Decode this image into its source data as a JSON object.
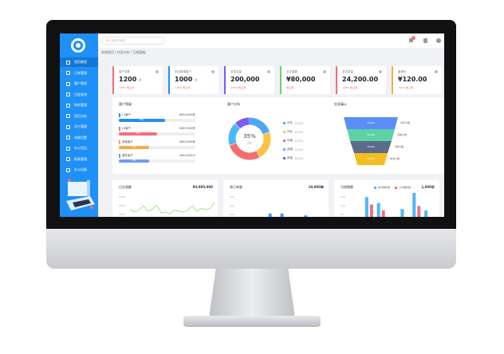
{
  "header": {
    "search_placeholder": "输入搜索关键词",
    "notification_count": "3"
  },
  "breadcrumb": "系统首页 / 信息分析 / 日程展板",
  "sidebar": {
    "items": [
      {
        "label": "首页概览"
      },
      {
        "label": "订单管理"
      },
      {
        "label": "客户管理"
      },
      {
        "label": "日程安排"
      },
      {
        "label": "财务管理"
      },
      {
        "label": "项目分析"
      },
      {
        "label": "员工管理"
      },
      {
        "label": "系统设置"
      },
      {
        "label": "办公用品"
      },
      {
        "label": "报表管理"
      },
      {
        "label": "办公设备"
      }
    ]
  },
  "cards": [
    {
      "title": "客户总数",
      "value": "1200",
      "unit": "个",
      "sub": "↑10% 较上月",
      "color": "#f56c6c"
    },
    {
      "title": "本月新增客户",
      "value": "1000",
      "unit": "个",
      "sub": "↑10% 较上月",
      "color": "#1e90f7"
    },
    {
      "title": "总成交量",
      "value": "200,000",
      "unit": "",
      "sub": "↑10% 较上周",
      "color": "#7b5cf5"
    },
    {
      "title": "总交易额",
      "value": "¥80,000",
      "unit": "",
      "sub": "较上周",
      "color": "#67d36a"
    },
    {
      "title": "总交易量",
      "value": "24,200.00",
      "unit": "",
      "sub": "↓20% 较上周",
      "color": "#f56c6c"
    },
    {
      "title": "客单价",
      "value": "¥120.00",
      "unit": "",
      "sub": "↑10% 较上周",
      "color": "#f7a94c"
    }
  ],
  "progress": {
    "title": "客户等级",
    "items": [
      {
        "label": "L1客户",
        "value": "600/1000件",
        "pct": 60,
        "color": "#1e90f7"
      },
      {
        "label": "L2客户",
        "value": "500/1000件",
        "pct": 50,
        "color": "#f56c7e"
      },
      {
        "label": "其他客户",
        "value": "400/1000件",
        "pct": 40,
        "color": "#f7a94c"
      },
      {
        "label": "潜在客户",
        "value": "400/1000人",
        "pct": 40,
        "color": "#6e9cf5"
      }
    ]
  },
  "donut": {
    "title": "客户分布",
    "center_value": "35%",
    "center_label": "占比",
    "slices": [
      {
        "label": "华东",
        "value": "10000",
        "pct": 20,
        "color": "#4da6f7"
      },
      {
        "label": "华北",
        "value": "10000",
        "pct": 22,
        "color": "#fbc243"
      },
      {
        "label": "华南",
        "value": "10000",
        "pct": 28,
        "color": "#f56c6c"
      },
      {
        "label": "西南",
        "value": "10000",
        "pct": 18,
        "color": "#4db8f7"
      },
      {
        "label": "其他",
        "value": "10000",
        "pct": 12,
        "color": "#7b5cf5"
      }
    ]
  },
  "funnel": {
    "title": "交易漏斗",
    "stages": [
      {
        "value": "20000",
        "label": "访问人数",
        "color": "#5b8ff7"
      },
      {
        "value": "20000",
        "label": "咨询人数",
        "color": "#5bd3a3"
      },
      {
        "value": "20000",
        "label": "下单人数",
        "color": "#5a6b8c"
      },
      {
        "value": "10000",
        "label": "成交人数",
        "color": "#f5bd1f"
      }
    ]
  },
  "bottom": [
    {
      "title": "日交易额",
      "right": "¥3,000,000",
      "yticks": [
        "5000",
        "4000",
        "3000"
      ]
    },
    {
      "title": "周订单量",
      "right": "10,000单",
      "yticks": [
        "900",
        "600",
        "300"
      ]
    },
    {
      "title": "月销售额",
      "right": "1,000余",
      "legend": [
        "本月销售额",
        "上月销售额"
      ],
      "yticks": [
        "150",
        "100",
        "50"
      ]
    }
  ],
  "chart_data": [
    {
      "type": "line",
      "title": "日交易额",
      "values": [
        3400,
        3100,
        3300,
        3800,
        3200,
        3400,
        3900,
        3000,
        3100,
        2900,
        3300,
        3200,
        3100,
        3300,
        3800,
        3200,
        3500,
        3400,
        3500,
        4200
      ],
      "color": "#95de64"
    },
    {
      "type": "bar",
      "title": "周订单量",
      "values": [
        210,
        390,
        570,
        570,
        340,
        530,
        350
      ],
      "color": "#3c9cff"
    },
    {
      "type": "bar",
      "title": "月销售额",
      "series": [
        {
          "name": "本月销售额",
          "values": [
            0,
            125,
            105,
            5,
            85,
            140,
            80
          ],
          "color": "#4db8f7"
        },
        {
          "name": "上月销售额",
          "values": [
            45,
            100,
            80,
            45,
            45,
            95,
            15
          ],
          "color": "#f56c7e"
        }
      ]
    }
  ]
}
